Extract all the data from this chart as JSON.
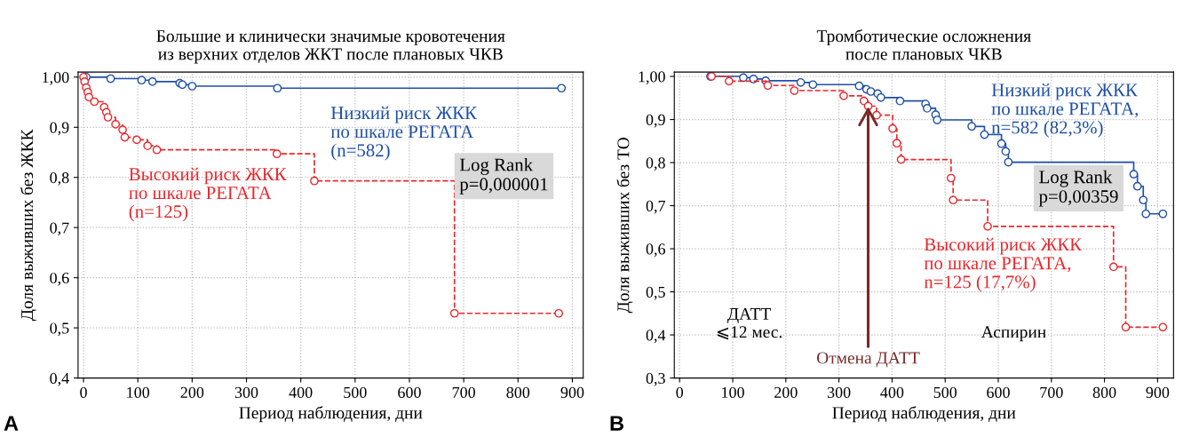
{
  "chart_data": [
    {
      "type": "step",
      "title": "Большие и клинически значимые кровотечения\nиз верхних отделов ЖКТ после плановых ЧКВ",
      "xlabel": "Период наблюдения, дни",
      "ylabel": "Доля выживших без ЖКК",
      "xlim": [
        -10,
        920
      ],
      "xticks": [
        0,
        100,
        200,
        300,
        400,
        500,
        600,
        700,
        800,
        900
      ],
      "ylim": [
        0.4,
        1.01
      ],
      "yticks": [
        {
          "value": 0.4,
          "label": "0,4"
        },
        {
          "value": 0.5,
          "label": "0,5"
        },
        {
          "value": 0.6,
          "label": "0,6"
        },
        {
          "value": 0.7,
          "label": "0,7"
        },
        {
          "value": 0.8,
          "label": "0,8"
        },
        {
          "value": 0.9,
          "label": "0,9"
        },
        {
          "value": 1.0,
          "label": "1,00"
        }
      ],
      "grid": true,
      "legend": false,
      "marker": "circle",
      "series": [
        {
          "name": "Низкий риск ЖКК\nпо шкале РЕГАТА\n(n=582)",
          "color": "#1f4fa8",
          "line_style": "solid",
          "x": [
            5,
            50,
            107,
            127,
            177,
            182,
            200,
            357,
            880
          ],
          "values": [
            1.0,
            0.997,
            0.994,
            0.991,
            0.988,
            0.985,
            0.982,
            0.978,
            0.978
          ]
        },
        {
          "name": "Высокий риск ЖКК\nпо шкале РЕГАТА\n(n=125)",
          "color": "#e8282d",
          "line_style": "dashed",
          "x": [
            0,
            2,
            5,
            8,
            10,
            20,
            38,
            42,
            45,
            59,
            72,
            76,
            98,
            118,
            135,
            356,
            425,
            683,
            875
          ],
          "values": [
            1.0,
            0.991,
            0.979,
            0.97,
            0.96,
            0.951,
            0.94,
            0.93,
            0.92,
            0.906,
            0.895,
            0.88,
            0.875,
            0.863,
            0.855,
            0.847,
            0.793,
            0.529,
            0.529
          ]
        }
      ],
      "annotations": [
        "Log Rank\np=0,000001",
        "A"
      ]
    },
    {
      "type": "step",
      "title": "Тромботические осложнения\nпосле плановых ЧКВ",
      "xlabel": "Период наблюдения, дни",
      "ylabel": "Доля выживших без ТО",
      "xlim": [
        -10,
        930
      ],
      "xticks": [
        0,
        100,
        200,
        300,
        400,
        500,
        600,
        700,
        800,
        900
      ],
      "ylim": [
        0.3,
        1.01
      ],
      "yticks": [
        {
          "value": 0.3,
          "label": "0,3"
        },
        {
          "value": 0.4,
          "label": "0,4"
        },
        {
          "value": 0.5,
          "label": "0,5"
        },
        {
          "value": 0.6,
          "label": "0,6"
        },
        {
          "value": 0.7,
          "label": "0,7"
        },
        {
          "value": 0.8,
          "label": "0,8"
        },
        {
          "value": 0.9,
          "label": "0,9"
        },
        {
          "value": 1.0,
          "label": "1,00"
        }
      ],
      "grid": true,
      "legend": false,
      "marker": "circle",
      "series": [
        {
          "name": "Низкий риск ЖКК\nпо шкале РЕГАТА,\nn=582 (82,3%)",
          "color": "#1f4fa8",
          "line_style": "solid",
          "x": [
            58,
            120,
            139,
            162,
            228,
            251,
            338,
            352,
            360,
            373,
            379,
            415,
            463,
            466,
            482,
            485,
            550,
            574,
            606,
            614,
            619,
            855,
            862,
            873,
            878,
            910
          ],
          "values": [
            1.0,
            0.997,
            0.994,
            0.99,
            0.986,
            0.981,
            0.978,
            0.97,
            0.965,
            0.96,
            0.951,
            0.943,
            0.936,
            0.926,
            0.911,
            0.899,
            0.884,
            0.865,
            0.844,
            0.826,
            0.801,
            0.773,
            0.745,
            0.713,
            0.681,
            0.681
          ]
        },
        {
          "name": "Высокий риск ЖКК\nпо шкале РЕГАТА,\nn=125 (17,7%)",
          "color": "#e8282d",
          "line_style": "dashed",
          "x": [
            60,
            93,
            166,
            216,
            309,
            347,
            355,
            371,
            401,
            409,
            417,
            511,
            515,
            580,
            817,
            840,
            910
          ],
          "values": [
            1.0,
            0.989,
            0.979,
            0.967,
            0.955,
            0.943,
            0.931,
            0.91,
            0.879,
            0.845,
            0.807,
            0.764,
            0.713,
            0.652,
            0.558,
            0.418,
            0.418
          ]
        }
      ],
      "annotations": [
        "Log Rank\np=0,00359",
        "ДАТТ\n⩽12 мес.",
        "Аспирин",
        {
          "text": "Отмена ДАТТ",
          "x": 355,
          "y": 0.93
        },
        "B"
      ]
    }
  ]
}
